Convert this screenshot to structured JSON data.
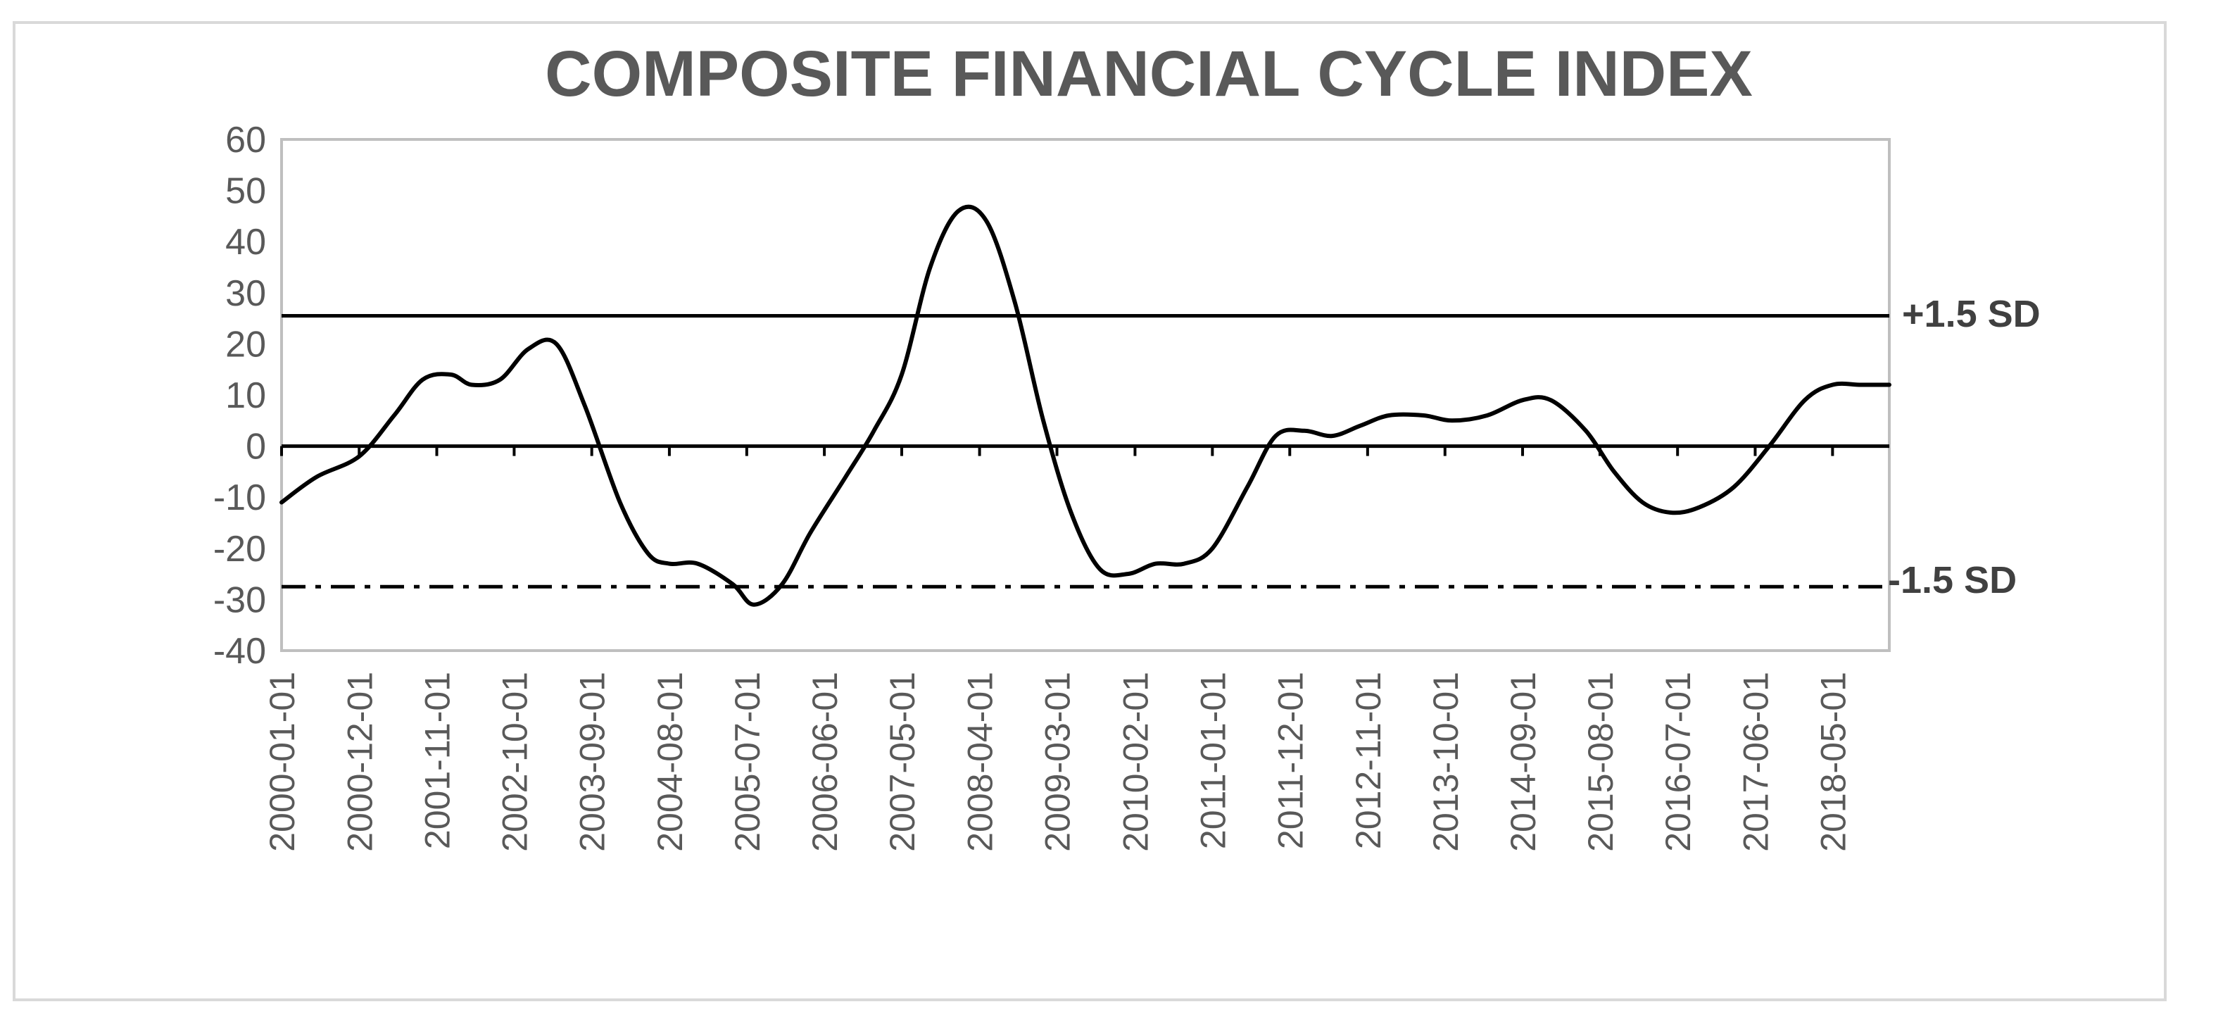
{
  "chart_data": {
    "type": "line",
    "title": "COMPOSITE FINANCIAL CYCLE INDEX",
    "xlabel": "",
    "ylabel": "",
    "ylim": [
      -40,
      60
    ],
    "yticks": [
      60,
      50,
      40,
      30,
      20,
      10,
      0,
      -10,
      -20,
      -30,
      -40
    ],
    "xlim": [
      "2000-01-01",
      "2019-01-01"
    ],
    "x_tick_labels": [
      "2000-01-01",
      "2000-12-01",
      "2001-11-01",
      "2002-10-01",
      "2003-09-01",
      "2004-08-01",
      "2005-07-01",
      "2006-06-01",
      "2007-05-01",
      "2008-04-01",
      "2009-03-01",
      "2010-02-01",
      "2011-01-01",
      "2011-12-01",
      "2012-11-01",
      "2013-10-01",
      "2014-09-01",
      "2015-08-01",
      "2016-07-01",
      "2017-06-01",
      "2018-05-01"
    ],
    "grid": false,
    "legend": "none",
    "series": [
      {
        "x": [
          "2000-01-01",
          "2000-06-01",
          "2000-12-01",
          "2001-05-01",
          "2001-09-01",
          "2002-01-01",
          "2002-04-01",
          "2002-08-01",
          "2002-12-01",
          "2003-04-01",
          "2003-08-01",
          "2004-01-01",
          "2004-05-01",
          "2004-08-01",
          "2004-12-01",
          "2005-05-01",
          "2005-08-01",
          "2005-12-01",
          "2006-04-01",
          "2006-09-01",
          "2007-01-01",
          "2007-05-01",
          "2007-09-01",
          "2008-01-01",
          "2008-05-01",
          "2008-09-01",
          "2009-01-01",
          "2009-05-01",
          "2009-09-01",
          "2010-01-01",
          "2010-05-01",
          "2010-09-01",
          "2011-01-01",
          "2011-06-01",
          "2011-10-01",
          "2012-02-01",
          "2012-06-01",
          "2012-10-01",
          "2013-02-01",
          "2013-07-01",
          "2013-11-01",
          "2014-04-01",
          "2014-09-01",
          "2015-01-01",
          "2015-06-01",
          "2015-10-01",
          "2016-02-01",
          "2016-06-01",
          "2016-10-01",
          "2017-03-01",
          "2017-08-01",
          "2018-01-01",
          "2018-05-01",
          "2018-09-01",
          "2019-01-01"
        ],
        "y": [
          -11,
          -6,
          -2,
          6,
          13,
          14,
          12,
          13,
          19,
          20,
          8,
          -11,
          -21,
          -23,
          -23,
          -27,
          -31,
          -27,
          -17,
          -6,
          3,
          14,
          35,
          46,
          44,
          28,
          5,
          -13,
          -24,
          -25,
          -23,
          -23,
          -20,
          -8,
          2,
          3,
          2,
          4,
          6,
          6,
          5,
          6,
          9,
          9,
          3,
          -5,
          -11,
          -13,
          -12,
          -8,
          0,
          9,
          12,
          12,
          12
        ]
      }
    ],
    "reference_lines": [
      {
        "label": "+1.5 SD",
        "y": 25.5,
        "style": "solid"
      },
      {
        "label": "-1.5 SD",
        "y": -27.5,
        "style": "dash-dot"
      }
    ],
    "colors": {
      "line": "#000000",
      "axis": "#bfbfbf",
      "text": "#595959"
    }
  }
}
